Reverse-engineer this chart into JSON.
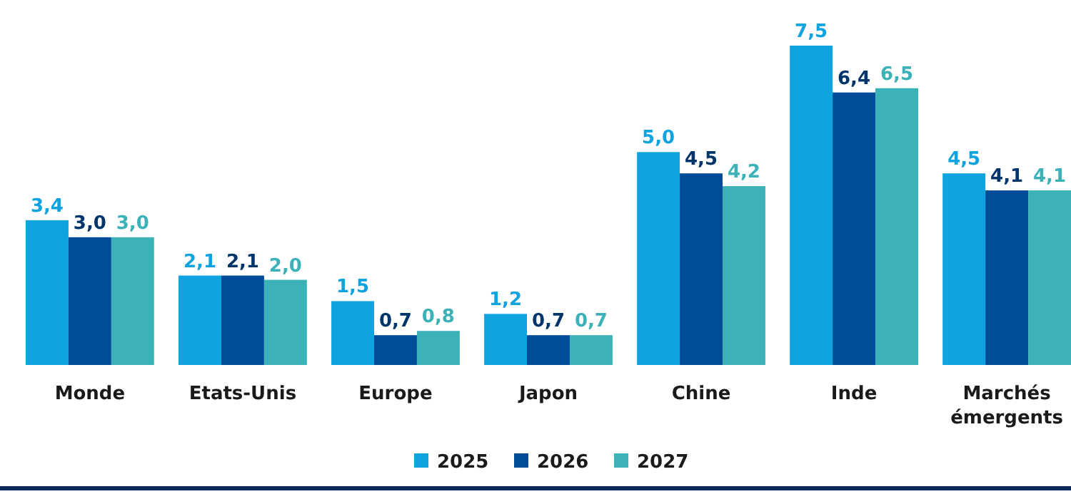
{
  "chart_data": {
    "type": "bar",
    "categories": [
      "Monde",
      "Etats-Unis",
      "Europe",
      "Japon",
      "Chine",
      "Inde",
      "Marchés émergents"
    ],
    "series": [
      {
        "name": "2025",
        "color": "#0fa3e0",
        "values": [
          3.4,
          2.1,
          1.5,
          1.2,
          5.0,
          7.5,
          4.5
        ],
        "value_labels": [
          "3,4",
          "2,1",
          "1,5",
          "1,2",
          "5,0",
          "7,5",
          "4,5"
        ]
      },
      {
        "name": "2026",
        "color": "#004c99",
        "values": [
          3.0,
          2.1,
          0.7,
          0.7,
          4.5,
          6.4,
          4.1
        ],
        "value_labels": [
          "3,0",
          "2,1",
          "0,7",
          "0,7",
          "4,5",
          "6,4",
          "4,1"
        ]
      },
      {
        "name": "2027",
        "color": "#3bb2b8",
        "values": [
          3.0,
          2.0,
          0.8,
          0.7,
          4.2,
          6.5,
          4.1
        ],
        "value_labels": [
          "3,0",
          "2,0",
          "0,8",
          "0,7",
          "4,2",
          "6,5",
          "4,1"
        ]
      }
    ],
    "legend": "bottom"
  }
}
